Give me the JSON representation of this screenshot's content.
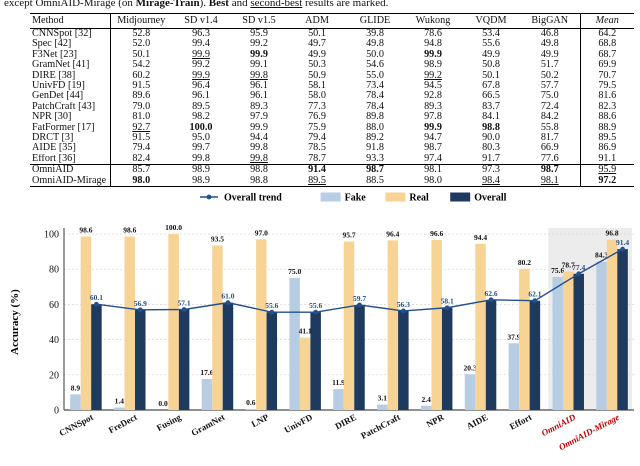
{
  "caption": {
    "prefix": "except OmniAID-Mirage (on ",
    "train": "Mirage-Train",
    "middle": "). ",
    "best": "Best",
    "and": " and ",
    "second": "second-best",
    "suffix": " results are marked."
  },
  "table": {
    "headers": [
      "Method",
      "Midjourney",
      "SD v1.4",
      "SD v1.5",
      "ADM",
      "GLIDE",
      "Wukong",
      "VQDM",
      "BigGAN",
      "Mean"
    ],
    "rows": [
      {
        "m": "CNNSpot [32]",
        "v": [
          "52.8",
          "96.3",
          "95.9",
          "50.1",
          "39.8",
          "78.6",
          "53.4",
          "46.8",
          "64.2"
        ],
        "b": [],
        "u": []
      },
      {
        "m": "Spec [42]",
        "v": [
          "52.0",
          "99.4",
          "99.2",
          "49.7",
          "49.8",
          "94.8",
          "55.6",
          "49.8",
          "68.8"
        ],
        "b": [],
        "u": []
      },
      {
        "m": "F3Net [23]",
        "v": [
          "50.1",
          "99.9",
          "99.9",
          "49.9",
          "50.0",
          "99.9",
          "49.9",
          "49.9",
          "68.7"
        ],
        "b": [
          2,
          5
        ],
        "u": [
          1
        ]
      },
      {
        "m": "GramNet [41]",
        "v": [
          "54.2",
          "99.2",
          "99.1",
          "50.3",
          "54.6",
          "98.9",
          "50.8",
          "51.7",
          "69.9"
        ],
        "b": [],
        "u": []
      },
      {
        "m": "DIRE [38]",
        "v": [
          "60.2",
          "99.9",
          "99.8",
          "50.9",
          "55.0",
          "99.2",
          "50.1",
          "50.2",
          "70.7"
        ],
        "b": [],
        "u": [
          1,
          2,
          5
        ]
      },
      {
        "m": "UnivFD [19]",
        "v": [
          "91.5",
          "96.4",
          "96.1",
          "58.1",
          "73.4",
          "94.5",
          "67.8",
          "57.7",
          "79.5"
        ],
        "b": [],
        "u": []
      },
      {
        "m": "GenDet [44]",
        "v": [
          "89.6",
          "96.1",
          "96.1",
          "58.0",
          "78.4",
          "92.8",
          "66.5",
          "75.0",
          "81.6"
        ],
        "b": [],
        "u": []
      },
      {
        "m": "PatchCraft [43]",
        "v": [
          "79.0",
          "89.5",
          "89.3",
          "77.3",
          "78.4",
          "89.3",
          "83.7",
          "72.4",
          "82.3"
        ],
        "b": [],
        "u": []
      },
      {
        "m": "NPR [30]",
        "v": [
          "81.0",
          "98.2",
          "97.9",
          "76.9",
          "89.8",
          "97.8",
          "84.1",
          "84.2",
          "88.6"
        ],
        "b": [],
        "u": []
      },
      {
        "m": "FatFormer [17]",
        "v": [
          "92.7",
          "100.0",
          "99.9",
          "75.9",
          "88.0",
          "99.9",
          "98.8",
          "55.8",
          "88.9"
        ],
        "b": [
          1,
          5,
          6
        ],
        "u": [
          0
        ]
      },
      {
        "m": "DRCT [3]",
        "v": [
          "91.5",
          "95.0",
          "94.4",
          "79.4",
          "89.2",
          "94.7",
          "90.0",
          "81.7",
          "89.5"
        ],
        "b": [],
        "u": []
      },
      {
        "m": "AIDE [35]",
        "v": [
          "79.4",
          "99.7",
          "99.8",
          "78.5",
          "91.8",
          "98.7",
          "80.3",
          "66.9",
          "86.9"
        ],
        "b": [],
        "u": []
      },
      {
        "m": "Effort [36]",
        "v": [
          "82.4",
          "99.8",
          "99.8",
          "78.7",
          "93.3",
          "97.4",
          "91.7",
          "77.6",
          "91.1"
        ],
        "b": [],
        "u": [
          2
        ]
      },
      {
        "m": "OmniAID",
        "v": [
          "85.7",
          "98.9",
          "98.8",
          "91.4",
          "98.7",
          "98.1",
          "97.3",
          "98.7",
          "95.9"
        ],
        "b": [
          3,
          4,
          7
        ],
        "u": [
          8
        ],
        "sep": true
      },
      {
        "m": "OmniAID-Mirage",
        "v": [
          "98.0",
          "98.9",
          "98.8",
          "89.5",
          "88.5",
          "98.0",
          "98.4",
          "98.1",
          "97.2"
        ],
        "b": [
          0,
          8
        ],
        "u": [
          3,
          6,
          7
        ],
        "last": true
      }
    ]
  },
  "chart_data": {
    "type": "bar",
    "ylabel": "Accuracy (%)",
    "ylim": [
      0,
      100
    ],
    "yticks": [
      0,
      20,
      40,
      60,
      80,
      100
    ],
    "grid": true,
    "legend": "top-center",
    "categories": [
      "CNNSpot",
      "FreDect",
      "Fusing",
      "GramNet",
      "LNP",
      "UnivFD",
      "DIRE",
      "PatchCraft",
      "NPR",
      "AIDE",
      "Effort",
      "OmniAID",
      "OmniAID-Mirage"
    ],
    "highlight_categories": [
      "OmniAID",
      "OmniAID-Mirage"
    ],
    "highlight_color": "#c00000",
    "series": [
      {
        "name": "Fake",
        "kind": "bar",
        "color": "#b6cde4",
        "values": [
          8.9,
          1.4,
          0.0,
          17.6,
          0.6,
          75.0,
          11.9,
          3.1,
          2.4,
          20.3,
          37.9,
          75.6,
          84.3
        ]
      },
      {
        "name": "Real",
        "kind": "bar",
        "color": "#f8d396",
        "values": [
          98.6,
          98.6,
          100.0,
          93.5,
          97.0,
          41.1,
          95.7,
          96.4,
          96.6,
          94.4,
          80.2,
          78.7,
          96.8
        ]
      },
      {
        "name": "Overall",
        "kind": "bar",
        "color": "#1f3a5f",
        "values": [
          60.1,
          56.9,
          57.1,
          61.0,
          55.6,
          55.6,
          59.7,
          56.3,
          58.1,
          62.6,
          62.1,
          77.4,
          91.4
        ]
      },
      {
        "name": "Overall trend",
        "kind": "line",
        "color": "#24508c",
        "values": [
          60.1,
          56.9,
          57.1,
          61.0,
          55.6,
          55.6,
          59.7,
          56.3,
          58.1,
          62.6,
          62.1,
          77.4,
          91.4
        ]
      }
    ],
    "legend_order": [
      "Overall trend",
      "Fake",
      "Real",
      "Overall"
    ]
  }
}
